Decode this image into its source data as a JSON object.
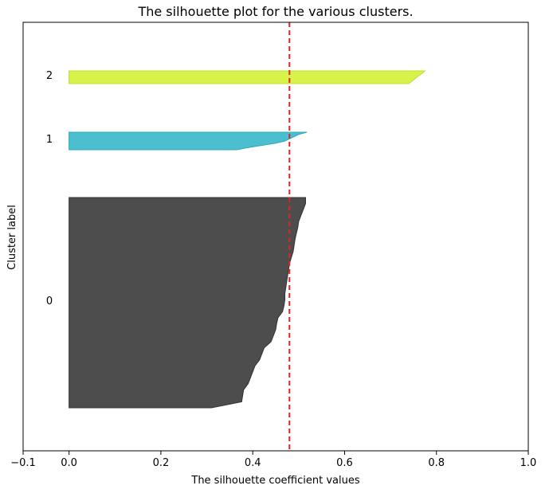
{
  "chart_data": {
    "type": "area",
    "title": "The silhouette plot for the various clusters.",
    "xlabel": "The silhouette coefficient values",
    "ylabel": "Cluster label",
    "xlim": [
      -0.1,
      1.0
    ],
    "xticks": [
      -0.1,
      0.0,
      0.2,
      0.4,
      0.6,
      0.8,
      1.0
    ],
    "xtick_labels": [
      "−0.1",
      "0.0",
      "0.2",
      "0.4",
      "0.6",
      "0.8",
      "1.0"
    ],
    "average_silhouette_score": 0.48,
    "average_line_color": "#d62728",
    "grid": false,
    "clusters": [
      {
        "label": "0",
        "color": "#4d4d4d",
        "edge_color": "#333333",
        "sorted_values": [
          0.515,
          0.515,
          0.51,
          0.505,
          0.5,
          0.498,
          0.495,
          0.492,
          0.49,
          0.488,
          0.484,
          0.48,
          0.478,
          0.476,
          0.474,
          0.472,
          0.47,
          0.47,
          0.468,
          0.465,
          0.455,
          0.452,
          0.45,
          0.445,
          0.44,
          0.425,
          0.42,
          0.415,
          0.405,
          0.4,
          0.395,
          0.39,
          0.38,
          0.378,
          0.376,
          0.31
        ]
      },
      {
        "label": "1",
        "color": "#4bbfcf",
        "edge_color": "#2aa8b8",
        "sorted_values": [
          0.518,
          0.5,
          0.49,
          0.48,
          0.47,
          0.45,
          0.42,
          0.39,
          0.365
        ]
      },
      {
        "label": "2",
        "color": "#d8f24a",
        "edge_color": "#c2dc35",
        "sorted_values": [
          0.775,
          0.77,
          0.765,
          0.76,
          0.755,
          0.75,
          0.745,
          0.74
        ]
      }
    ]
  }
}
